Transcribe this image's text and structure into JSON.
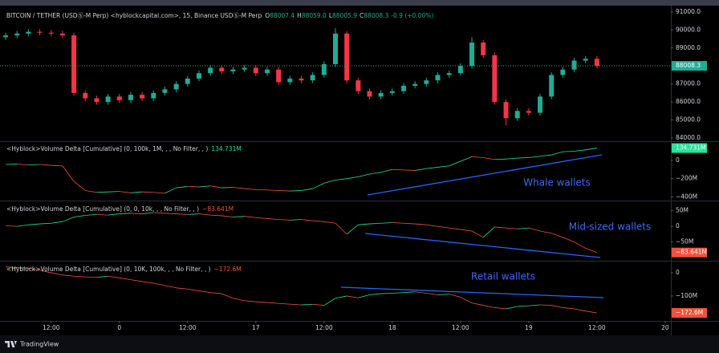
{
  "chart_data": [
    {
      "type": "candlestick",
      "title": "BITCOIN / TETHER (USDⓈ-M Perp) <hyblockcapital.com>, 15, Binance USDⓈ-M Perp",
      "ohlc": [
        {
          "label": "O",
          "value": "88007.4"
        },
        {
          "label": "H",
          "value": "88059.0"
        },
        {
          "label": "L",
          "value": "88005.9"
        },
        {
          "label": "C",
          "value": "88008.3"
        }
      ],
      "change": "-0.9 (+0.00%)",
      "up_color": "#22ab94",
      "down_color": "#f23645",
      "x": [
        -20,
        -18,
        -16,
        -14,
        -12,
        -10,
        -8,
        -6,
        -4,
        -2,
        0,
        2,
        4,
        6,
        8,
        10,
        12,
        14,
        16,
        18,
        20,
        22,
        24,
        26,
        28,
        30,
        32,
        34,
        36,
        38,
        40,
        42,
        44,
        46,
        48,
        50,
        52,
        54,
        56,
        58,
        60,
        62,
        64,
        66,
        68,
        70,
        72,
        74,
        76,
        78,
        80,
        82,
        84
      ],
      "open": [
        89600,
        89700,
        89800,
        89900,
        89850,
        89800,
        89700,
        86500,
        86200,
        86000,
        86300,
        86100,
        86400,
        86200,
        86500,
        86700,
        87000,
        87300,
        87600,
        87900,
        87700,
        87800,
        87900,
        87600,
        87800,
        87100,
        87300,
        87200,
        87500,
        88100,
        89800,
        87200,
        86600,
        86300,
        86500,
        86600,
        86900,
        87000,
        87200,
        87500,
        87600,
        88000,
        89300,
        88600,
        86000,
        85100,
        85500,
        85400,
        86300,
        87500,
        87800,
        88300,
        88400
      ],
      "high": [
        89850,
        89950,
        90050,
        90050,
        90000,
        89950,
        89850,
        86650,
        86350,
        86450,
        86450,
        86550,
        86550,
        86650,
        86850,
        87150,
        87450,
        87750,
        88050,
        88050,
        87950,
        88050,
        88050,
        87950,
        87950,
        87450,
        87450,
        87650,
        88250,
        90100,
        89950,
        87350,
        86750,
        86650,
        86750,
        87050,
        87150,
        87350,
        87650,
        87750,
        88150,
        89600,
        89450,
        88750,
        86150,
        85650,
        85650,
        86450,
        87650,
        87950,
        88450,
        88550,
        88550
      ],
      "low": [
        89450,
        89550,
        89650,
        89700,
        89650,
        89550,
        86350,
        86050,
        85850,
        85850,
        85950,
        85950,
        86050,
        86050,
        86350,
        86550,
        86850,
        87150,
        87450,
        87550,
        87550,
        87650,
        87450,
        87450,
        86950,
        86950,
        87050,
        87050,
        87350,
        87950,
        87050,
        86450,
        86150,
        86150,
        86350,
        86450,
        86750,
        86850,
        87050,
        87350,
        87450,
        87850,
        88450,
        85850,
        84700,
        84950,
        85250,
        85250,
        86150,
        87350,
        87650,
        88150,
        87858
      ],
      "close": [
        89700,
        89800,
        89900,
        89850,
        89800,
        89700,
        86500,
        86200,
        86000,
        86300,
        86100,
        86400,
        86200,
        86500,
        86700,
        87000,
        87300,
        87600,
        87900,
        87700,
        87800,
        87900,
        87600,
        87800,
        87100,
        87300,
        87200,
        87500,
        88100,
        89800,
        87200,
        86600,
        86300,
        86500,
        86600,
        86900,
        87000,
        87200,
        87500,
        87600,
        88000,
        89300,
        88600,
        86000,
        85100,
        85500,
        85400,
        86300,
        87500,
        87800,
        88300,
        88400,
        88008
      ],
      "last_price": 88008.3,
      "xlim": [
        -21,
        97
      ],
      "ylim": [
        83820,
        91220
      ],
      "yticks": [
        {
          "value": 84000,
          "label": "84000.0"
        },
        {
          "value": 85000,
          "label": "85000.0"
        },
        {
          "value": 86000,
          "label": "86000.0"
        },
        {
          "value": 87000,
          "label": "87000.0"
        },
        {
          "value": 88000,
          "label": "88000.0"
        },
        {
          "value": 89000,
          "label": "89000.0"
        },
        {
          "value": 90000,
          "label": "90000.0"
        },
        {
          "value": 91000,
          "label": "91000.0"
        }
      ]
    },
    {
      "type": "line",
      "title": "<Hyblock>Volume Delta [Cumulative] (0, 100k, 1M, , , No Filter, , )",
      "annotation": "Whale wallets",
      "up_color": "#26e29a",
      "down_color": "#f2513c",
      "x": [
        -20,
        -18,
        -16,
        -14,
        -12,
        -10,
        -8,
        -6,
        -4,
        -2,
        0,
        2,
        4,
        6,
        8,
        10,
        12,
        14,
        16,
        18,
        20,
        22,
        24,
        26,
        28,
        30,
        32,
        34,
        36,
        38,
        40,
        42,
        44,
        46,
        48,
        50,
        52,
        54,
        56,
        58,
        60,
        62,
        64,
        66,
        68,
        70,
        72,
        74,
        76,
        78,
        80,
        82,
        84
      ],
      "values": [
        -45,
        -40,
        -50,
        -45,
        -55,
        -60,
        -230,
        -330,
        -350,
        -345,
        -340,
        -355,
        -345,
        -350,
        -360,
        -300,
        -285,
        -290,
        -280,
        -300,
        -295,
        -310,
        -320,
        -325,
        -330,
        -335,
        -330,
        -310,
        -250,
        -215,
        -200,
        -180,
        -150,
        -130,
        -100,
        -105,
        -110,
        -90,
        -75,
        -60,
        -10,
        40,
        30,
        10,
        15,
        25,
        30,
        45,
        60,
        95,
        100,
        115,
        134.731
      ],
      "current": {
        "value": 134.731,
        "label": "134.731M"
      },
      "xlim": [
        -21,
        97
      ],
      "ylim": [
        -440,
        210
      ],
      "yticks": [
        {
          "value": -400,
          "label": "−400M"
        },
        {
          "value": -200,
          "label": "−200M"
        },
        0
      ]
    },
    {
      "type": "line",
      "title": "<Hyblock>Volume Delta [Cumulative] (0, 0, 10k, , , No Filter, , )",
      "annotation": "Mid-sized wallets",
      "up_color": "#26e29a",
      "down_color": "#f2513c",
      "x": [
        -20,
        -18,
        -16,
        -14,
        -12,
        -10,
        -8,
        -6,
        -4,
        -2,
        0,
        2,
        4,
        6,
        8,
        10,
        12,
        14,
        16,
        18,
        20,
        22,
        24,
        26,
        28,
        30,
        32,
        34,
        36,
        38,
        40,
        42,
        44,
        46,
        48,
        50,
        52,
        54,
        56,
        58,
        60,
        62,
        64,
        66,
        68,
        70,
        72,
        74,
        76,
        78,
        80,
        82,
        84
      ],
      "values": [
        2,
        0,
        5,
        8,
        10,
        15,
        30,
        35,
        38,
        36,
        40,
        42,
        40,
        44,
        42,
        40,
        38,
        40,
        36,
        34,
        30,
        32,
        28,
        25,
        22,
        20,
        22,
        18,
        15,
        10,
        -25,
        5,
        8,
        10,
        12,
        10,
        8,
        5,
        0,
        -5,
        -10,
        -15,
        -35,
        -2,
        -5,
        -8,
        -5,
        -15,
        -22,
        -35,
        -50,
        -70,
        -83.641
      ],
      "current": {
        "value": -83.641,
        "label": "−83.641M"
      },
      "xlim": [
        -21,
        97
      ],
      "ylim": [
        -110,
        80
      ],
      "yticks": [
        {
          "value": -50,
          "label": "−50M"
        },
        0,
        {
          "value": 50,
          "label": "50M"
        }
      ]
    },
    {
      "type": "line",
      "title": "<Hyblock>Volume Delta [Cumulative] (0, 10K, 100k, , , No Filter, , )",
      "annotation": "Retail wallets",
      "up_color": "#26e29a",
      "down_color": "#f2513c",
      "x": [
        -20,
        -18,
        -16,
        -14,
        -12,
        -10,
        -8,
        -6,
        -4,
        -2,
        0,
        2,
        4,
        6,
        8,
        10,
        12,
        14,
        16,
        18,
        20,
        22,
        24,
        26,
        28,
        30,
        32,
        34,
        36,
        38,
        40,
        42,
        44,
        46,
        48,
        50,
        52,
        54,
        56,
        58,
        60,
        62,
        64,
        66,
        68,
        70,
        72,
        74,
        76,
        78,
        80,
        82,
        84
      ],
      "values": [
        25,
        22,
        20,
        10,
        0,
        -10,
        -15,
        -18,
        -20,
        -15,
        -22,
        -30,
        -38,
        -45,
        -55,
        -65,
        -70,
        -78,
        -85,
        -90,
        -110,
        -120,
        -125,
        -128,
        -132,
        -135,
        -138,
        -136,
        -140,
        -110,
        -100,
        -108,
        -95,
        -90,
        -88,
        -85,
        -82,
        -88,
        -95,
        -92,
        -105,
        -130,
        -140,
        -150,
        -155,
        -145,
        -142,
        -138,
        -140,
        -150,
        -155,
        -165,
        -172.6
      ],
      "current": {
        "value": -172.6,
        "label": "−172.6M"
      },
      "xlim": [
        -21,
        97
      ],
      "ylim": [
        -207,
        48
      ],
      "yticks": [
        {
          "value": -100,
          "label": "−100M"
        },
        0
      ],
      "xticks": [
        {
          "value": -12,
          "label": "12:00"
        },
        0,
        {
          "value": 12,
          "label": "12:00"
        },
        {
          "value": 24,
          "label": "17"
        },
        {
          "value": 36,
          "label": "12:00"
        },
        {
          "value": 48,
          "label": "18"
        },
        {
          "value": 60,
          "label": "12:00"
        },
        {
          "value": 72,
          "label": "19"
        },
        {
          "value": 84,
          "label": "12:00"
        },
        {
          "value": 96,
          "label": "20"
        }
      ]
    }
  ],
  "footer": "TradingView"
}
